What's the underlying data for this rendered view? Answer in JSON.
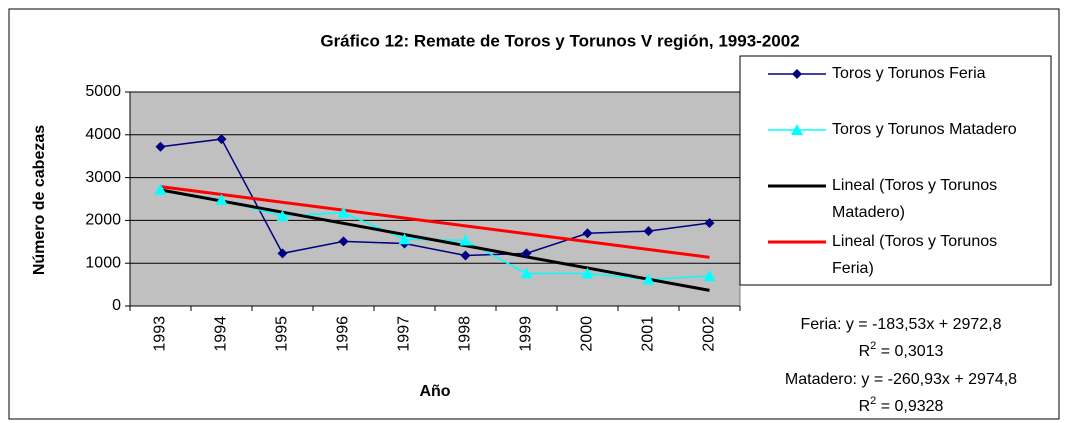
{
  "chart_data": {
    "type": "line",
    "title": "Gráfico 12: Remate de Toros y Torunos V región, 1993-2002",
    "x_label": "Año",
    "y_label": "Número de cabezas",
    "categories": [
      "1993",
      "1994",
      "1995",
      "1996",
      "1997",
      "1998",
      "1999",
      "2000",
      "2001",
      "2002"
    ],
    "series": [
      {
        "name": "Toros y Torunos Feria",
        "color": "#000080",
        "marker": "diamond",
        "values": [
          3720,
          3900,
          1230,
          1510,
          1460,
          1180,
          1230,
          1700,
          1750,
          1940
        ]
      },
      {
        "name": "Toros y Torunos Matadero",
        "color": "#00ffff",
        "marker": "triangle",
        "values": [
          2720,
          2480,
          2100,
          2180,
          1560,
          1530,
          760,
          760,
          620,
          700
        ]
      }
    ],
    "trendlines": [
      {
        "name": "Lineal (Toros y Torunos Matadero)",
        "color": "#000000",
        "slope": -260.93,
        "intercept": 2974.8,
        "equation": "Matadero: y = -260,93x + 2974,8",
        "r2": 0.9328,
        "r2_label": {
          "base": "R",
          "sup": "2",
          "rest": " = 0,9328"
        }
      },
      {
        "name": "Lineal (Toros y Torunos Feria)",
        "color": "#ff0000",
        "slope": -183.53,
        "intercept": 2972.8,
        "equation": "Feria: y = -183,53x + 2972,8",
        "r2": 0.3013,
        "r2_label": {
          "base": "R",
          "sup": "2",
          "rest": " = 0,3013"
        }
      }
    ],
    "ylim": [
      0,
      5000
    ],
    "yticks": [
      0,
      1000,
      2000,
      3000,
      4000,
      5000
    ],
    "grid": true,
    "plot_background": "#c0c0c0",
    "legend": "right"
  }
}
